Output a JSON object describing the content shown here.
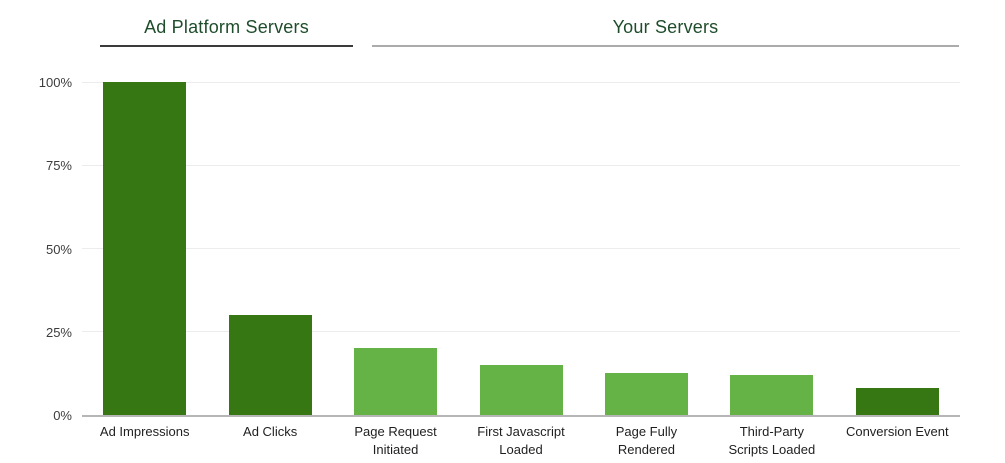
{
  "chart_data": {
    "type": "bar",
    "title": "",
    "categories": [
      "Ad Impressions",
      "Ad Clicks",
      "Page Request Initiated",
      "First Javascript Loaded",
      "Page Fully Rendered",
      "Third-Party Scripts Loaded",
      "Conversion Event"
    ],
    "label_lines": [
      [
        "Ad Impressions"
      ],
      [
        "Ad Clicks"
      ],
      [
        "Page Request",
        "Initiated"
      ],
      [
        "First Javascript",
        "Loaded"
      ],
      [
        "Page Fully",
        "Rendered"
      ],
      [
        "Third-Party",
        "Scripts Loaded"
      ],
      [
        "Conversion Event"
      ]
    ],
    "values": [
      100,
      30,
      20,
      15,
      12.5,
      12,
      8
    ],
    "unit": "%",
    "xlabel": "",
    "ylabel": "",
    "ylim": [
      0,
      100
    ],
    "yticks": [
      0,
      25,
      50,
      75,
      100
    ],
    "ytick_labels": [
      "0%",
      "25%",
      "50%",
      "75%",
      "100%"
    ],
    "grid": true,
    "legend": "none",
    "bar_colors": [
      "#377713",
      "#377713",
      "#65B347",
      "#65B347",
      "#65B347",
      "#65B347",
      "#377713"
    ],
    "groups": [
      {
        "label": "Ad Platform Servers",
        "category_span": [
          0,
          1
        ],
        "text_color": "#1e4d2b",
        "underline_color": "#3b3b3b"
      },
      {
        "label": "Your Servers",
        "category_span": [
          2,
          6
        ],
        "text_color": "#1e4d2b",
        "underline_color": "#ababab"
      }
    ]
  },
  "colors": {
    "background": "#ffffff",
    "gridline": "#ececec",
    "axis_line": "#b6b6b6",
    "tick_label": "#3c3c3c",
    "category_label": "#1f1f1f",
    "dark_bar": "#377713",
    "light_bar": "#65B347"
  }
}
